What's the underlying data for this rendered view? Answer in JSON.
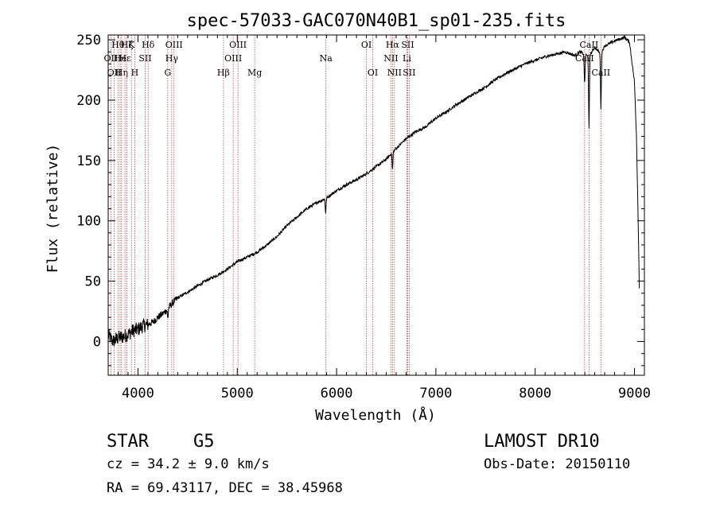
{
  "chart_data": {
    "type": "line",
    "title": "spec-57033-GAC070N40B1_sp01-235.fits",
    "xlabel": "Wavelength (Å)",
    "ylabel": "Flux (relative)",
    "xlim": [
      3700,
      9100
    ],
    "ylim": [
      -28,
      254
    ],
    "xticks": [
      4000,
      5000,
      6000,
      7000,
      8000,
      9000
    ],
    "yticks": [
      0,
      50,
      100,
      150,
      200,
      250
    ],
    "series": [
      {
        "color": "#000000",
        "points": [
          [
            3700,
            5
          ],
          [
            3750,
            0
          ],
          [
            3800,
            3
          ],
          [
            3850,
            4
          ],
          [
            3900,
            6
          ],
          [
            3950,
            9
          ],
          [
            4000,
            10
          ],
          [
            4050,
            13
          ],
          [
            4100,
            14
          ],
          [
            4150,
            16
          ],
          [
            4200,
            20
          ],
          [
            4250,
            23
          ],
          [
            4300,
            27
          ],
          [
            4350,
            32
          ],
          [
            4400,
            36
          ],
          [
            4500,
            41
          ],
          [
            4600,
            46
          ],
          [
            4700,
            51
          ],
          [
            4800,
            55
          ],
          [
            4900,
            60
          ],
          [
            5000,
            66
          ],
          [
            5100,
            70
          ],
          [
            5200,
            74
          ],
          [
            5300,
            80
          ],
          [
            5400,
            87
          ],
          [
            5500,
            96
          ],
          [
            5600,
            103
          ],
          [
            5700,
            110
          ],
          [
            5800,
            115
          ],
          [
            5900,
            119
          ],
          [
            6000,
            125
          ],
          [
            6100,
            130
          ],
          [
            6200,
            134
          ],
          [
            6300,
            139
          ],
          [
            6400,
            145
          ],
          [
            6500,
            151
          ],
          [
            6600,
            160
          ],
          [
            6700,
            168
          ],
          [
            6800,
            174
          ],
          [
            6900,
            178
          ],
          [
            7000,
            185
          ],
          [
            7100,
            190
          ],
          [
            7200,
            196
          ],
          [
            7300,
            201
          ],
          [
            7400,
            206
          ],
          [
            7500,
            211
          ],
          [
            7600,
            217
          ],
          [
            7700,
            222
          ],
          [
            7800,
            226
          ],
          [
            7900,
            230
          ],
          [
            8000,
            233
          ],
          [
            8100,
            236
          ],
          [
            8200,
            238
          ],
          [
            8300,
            240
          ],
          [
            8400,
            237
          ],
          [
            8450,
            240
          ],
          [
            8498,
            238
          ],
          [
            8542,
            236
          ],
          [
            8600,
            244
          ],
          [
            8662,
            238
          ],
          [
            8700,
            245
          ],
          [
            8800,
            249
          ],
          [
            8900,
            252
          ],
          [
            8950,
            248
          ],
          [
            9000,
            215
          ],
          [
            9020,
            170
          ],
          [
            9035,
            110
          ],
          [
            9050,
            40
          ]
        ]
      }
    ],
    "absorption_dips": [
      {
        "x": 4300,
        "depth": 8
      },
      {
        "x": 5890,
        "depth": 12
      },
      {
        "x": 6563,
        "depth": 14
      },
      {
        "x": 8498,
        "depth": 25
      },
      {
        "x": 8542,
        "depth": 60
      },
      {
        "x": 8662,
        "depth": 45
      }
    ],
    "line_markers": [
      {
        "x": 3727,
        "label": "OII",
        "row": 2
      },
      {
        "x": 3760,
        "label": "OII",
        "row": 3
      },
      {
        "x": 3798,
        "label": "Hθ",
        "row": 1
      },
      {
        "x": 3820,
        "label": "He",
        "row": 2
      },
      {
        "x": 3835,
        "label": "Hη",
        "row": 3
      },
      {
        "x": 3869,
        "label": "Hε",
        "row": 2
      },
      {
        "x": 3889,
        "label": "Hζ",
        "row": 1
      },
      {
        "x": 3934,
        "label": "K",
        "row": 1
      },
      {
        "x": 3968,
        "label": "H",
        "row": 3
      },
      {
        "x": 4072,
        "label": "SII",
        "row": 2
      },
      {
        "x": 4102,
        "label": "Hδ",
        "row": 1
      },
      {
        "x": 4300,
        "label": "G",
        "row": 3
      },
      {
        "x": 4340,
        "label": "Hγ",
        "row": 2
      },
      {
        "x": 4363,
        "label": "OIII",
        "row": 1
      },
      {
        "x": 4861,
        "label": "Hβ",
        "row": 3
      },
      {
        "x": 4959,
        "label": "OIII",
        "row": 2
      },
      {
        "x": 5007,
        "label": "OIII",
        "row": 1
      },
      {
        "x": 5175,
        "label": "Mg",
        "row": 3
      },
      {
        "x": 5893,
        "label": "Na",
        "row": 2
      },
      {
        "x": 6300,
        "label": "OI",
        "row": 1
      },
      {
        "x": 6364,
        "label": "OI",
        "row": 3
      },
      {
        "x": 6548,
        "label": "NII",
        "row": 2
      },
      {
        "x": 6563,
        "label": "Hα",
        "row": 1
      },
      {
        "x": 6583,
        "label": "NII",
        "row": 3
      },
      {
        "x": 6708,
        "label": "Li",
        "row": 2
      },
      {
        "x": 6716,
        "label": "SII",
        "row": 1
      },
      {
        "x": 6731,
        "label": "SII",
        "row": 3
      },
      {
        "x": 8498,
        "label": "CaII",
        "row": 2
      },
      {
        "x": 8542,
        "label": "CaII",
        "row": 1
      },
      {
        "x": 8662,
        "label": "CaII",
        "row": 3
      }
    ]
  },
  "info": {
    "class": "STAR",
    "subclass": "G5",
    "survey": "LAMOST DR10",
    "cz": "cz = 34.2 ± 9.0 km/s",
    "obs_date": "Obs-Date: 20150110",
    "coords": "RA =  69.43117, DEC =  38.45968"
  }
}
